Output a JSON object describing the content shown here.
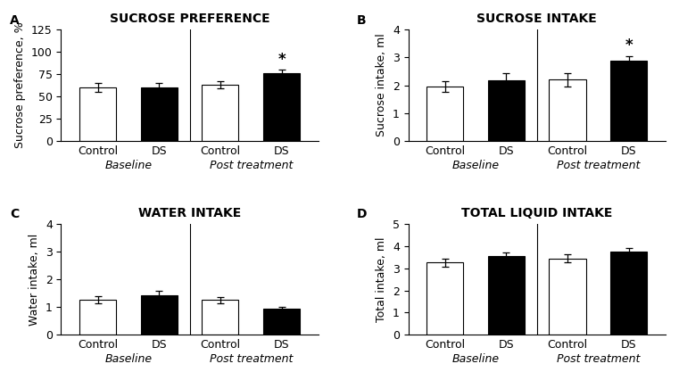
{
  "chart_data": [
    {
      "type": "bar",
      "panel_label": "A",
      "title": "SUCROSE PREFERENCE",
      "ylabel": "Sucrose preference, %",
      "categories": [
        "Control",
        "DS",
        "Control",
        "DS"
      ],
      "values": [
        60,
        60,
        63,
        76
      ],
      "errors": [
        5,
        5,
        4,
        4
      ],
      "colors": [
        "white",
        "black",
        "white",
        "black"
      ],
      "groups": [
        {
          "label": "Baseline",
          "bars": [
            0,
            1
          ]
        },
        {
          "label": "Post treatment",
          "bars": [
            2,
            3
          ]
        }
      ],
      "annotations": [
        {
          "text": "*",
          "bar": 3
        }
      ],
      "ylim": [
        0,
        125
      ],
      "yticks": [
        0,
        25,
        50,
        75,
        100,
        125
      ]
    },
    {
      "type": "bar",
      "panel_label": "B",
      "title": "SUCROSE INTAKE",
      "ylabel": "Sucrose intake, ml",
      "categories": [
        "Control",
        "DS",
        "Control",
        "DS"
      ],
      "values": [
        1.95,
        2.17,
        2.2,
        2.9
      ],
      "errors": [
        0.2,
        0.25,
        0.25,
        0.15
      ],
      "colors": [
        "white",
        "black",
        "white",
        "black"
      ],
      "groups": [
        {
          "label": "Baseline",
          "bars": [
            0,
            1
          ]
        },
        {
          "label": "Post treatment",
          "bars": [
            2,
            3
          ]
        }
      ],
      "annotations": [
        {
          "text": "*",
          "bar": 3
        }
      ],
      "ylim": [
        0,
        4
      ],
      "yticks": [
        0,
        1,
        2,
        3,
        4
      ]
    },
    {
      "type": "bar",
      "panel_label": "C",
      "title": "WATER INTAKE",
      "ylabel": "Water intake, ml",
      "categories": [
        "Control",
        "DS",
        "Control",
        "DS"
      ],
      "values": [
        1.27,
        1.42,
        1.25,
        0.93
      ],
      "errors": [
        0.12,
        0.18,
        0.12,
        0.08
      ],
      "colors": [
        "white",
        "black",
        "white",
        "black"
      ],
      "groups": [
        {
          "label": "Baseline",
          "bars": [
            0,
            1
          ]
        },
        {
          "label": "Post treatment",
          "bars": [
            2,
            3
          ]
        }
      ],
      "annotations": [],
      "ylim": [
        0,
        4
      ],
      "yticks": [
        0,
        1,
        2,
        3,
        4
      ]
    },
    {
      "type": "bar",
      "panel_label": "D",
      "title": "TOTAL LIQUID INTAKE",
      "ylabel": "Total intake, ml",
      "categories": [
        "Control",
        "DS",
        "Control",
        "DS"
      ],
      "values": [
        3.25,
        3.55,
        3.45,
        3.75
      ],
      "errors": [
        0.2,
        0.18,
        0.18,
        0.15
      ],
      "colors": [
        "white",
        "black",
        "white",
        "black"
      ],
      "groups": [
        {
          "label": "Baseline",
          "bars": [
            0,
            1
          ]
        },
        {
          "label": "Post treatment",
          "bars": [
            2,
            3
          ]
        }
      ],
      "annotations": [],
      "ylim": [
        0,
        5
      ],
      "yticks": [
        0,
        1,
        2,
        3,
        4,
        5
      ]
    }
  ]
}
